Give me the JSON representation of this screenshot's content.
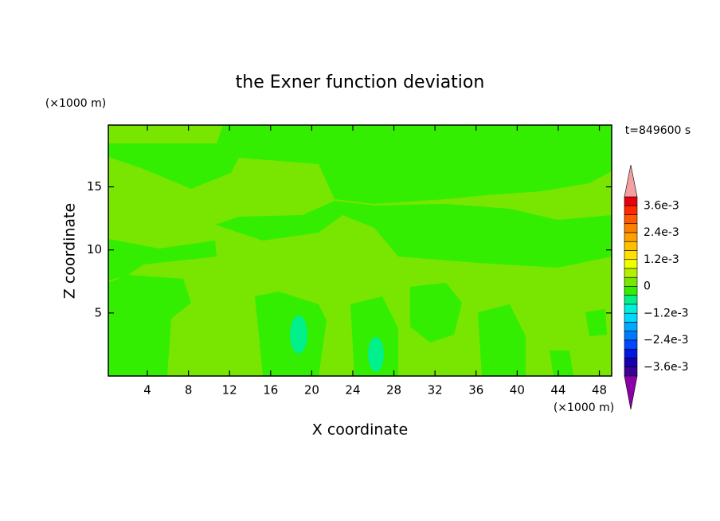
{
  "chart_data": {
    "type": "contour",
    "title": "the Exner function deviation",
    "x_label": "X coordinate",
    "y_label": "Z coordinate",
    "x_unit": "(×1000 m)",
    "y_unit": "(×1000 m)",
    "annotation": "t=849600 s",
    "xlim": [
      0.2,
      49.2
    ],
    "ylim": [
      0,
      19.9
    ],
    "xticks": [
      4,
      8,
      12,
      16,
      20,
      24,
      28,
      32,
      36,
      40,
      44,
      48
    ],
    "yticks": [
      5,
      10,
      15
    ],
    "colorbar": {
      "levels": [
        0.004,
        0.0036,
        0.0032,
        0.0028,
        0.0024,
        0.002,
        0.0016,
        0.0012,
        0.0008,
        0.0004,
        0,
        -0.0004,
        -0.0008,
        -0.0012,
        -0.0016,
        -0.002,
        -0.0024,
        -0.0028,
        -0.0032,
        -0.0036,
        -0.004
      ],
      "colors": [
        "#e80010",
        "#ff2a00",
        "#ff5a00",
        "#ff8000",
        "#ffa000",
        "#ffc000",
        "#ffe000",
        "#f0ff00",
        "#b4f000",
        "#78e600",
        "#33ee00",
        "#00f08c",
        "#00f0dc",
        "#00d8ff",
        "#00a8ff",
        "#0078ff",
        "#0048ff",
        "#0018e0",
        "#1800b0",
        "#3c0096"
      ],
      "over_color": "#f4a0a0",
      "under_color": "#8c00a8",
      "ticks": [
        {
          "value": 0.0036,
          "label": "3.6e-3"
        },
        {
          "value": 0.0024,
          "label": "2.4e-3"
        },
        {
          "value": 0.0012,
          "label": "1.2e-3"
        },
        0,
        {
          "value": -0.0012,
          "label": "−1.2e-3"
        },
        {
          "value": -0.0024,
          "label": "−2.4e-3"
        },
        {
          "value": -0.0036,
          "label": "−3.6e-3"
        }
      ]
    }
  }
}
